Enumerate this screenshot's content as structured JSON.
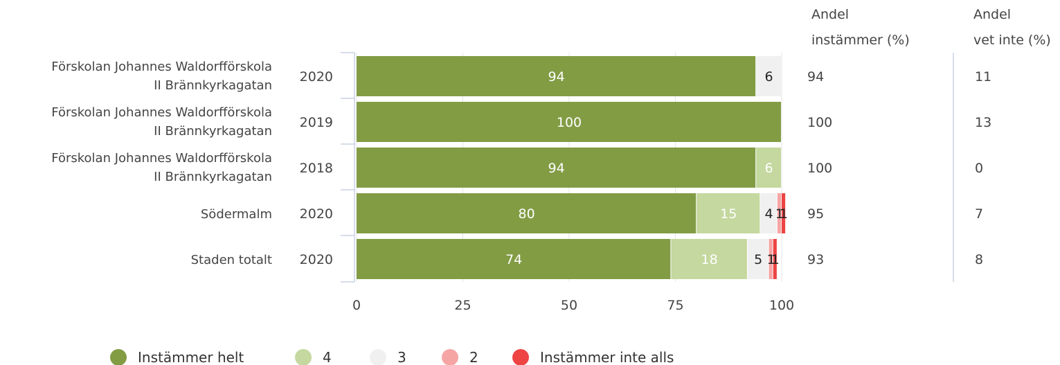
{
  "chart_data": {
    "type": "bar",
    "stacked": true,
    "orientation": "horizontal",
    "rows": [
      {
        "label_line1": "Förskolan Johannes Waldorfförskola",
        "label_line2": "II Brännkyrkagatan",
        "year": "2020",
        "values": [
          94,
          0,
          6,
          0,
          0
        ],
        "andel_instammer": "94",
        "andel_vet_inte": "11"
      },
      {
        "label_line1": "Förskolan Johannes Waldorfförskola",
        "label_line2": "II Brännkyrkagatan",
        "year": "2019",
        "values": [
          100,
          0,
          0,
          0,
          0
        ],
        "andel_instammer": "100",
        "andel_vet_inte": "13"
      },
      {
        "label_line1": "Förskolan Johannes Waldorfförskola",
        "label_line2": "II Brännkyrkagatan",
        "year": "2018",
        "values": [
          94,
          6,
          0,
          0,
          0
        ],
        "andel_instammer": "100",
        "andel_vet_inte": "0"
      },
      {
        "label_line1": "Södermalm",
        "label_line2": "",
        "year": "2020",
        "values": [
          80,
          15,
          4,
          1,
          1
        ],
        "andel_instammer": "95",
        "andel_vet_inte": "7"
      },
      {
        "label_line1": "Staden totalt",
        "label_line2": "",
        "year": "2020",
        "values": [
          74,
          18,
          5,
          1,
          1
        ],
        "andel_instammer": "93",
        "andel_vet_inte": "8"
      }
    ],
    "series": [
      {
        "name": "Instämmer helt",
        "color": "#829c44",
        "label_color": "#ffffff"
      },
      {
        "name": "4",
        "color": "#c4d89f",
        "label_color": "#ffffff"
      },
      {
        "name": "3",
        "color": "#f0f0f0",
        "label_color": "#222222"
      },
      {
        "name": "2",
        "color": "#f6a5a5",
        "label_color": "#222222"
      },
      {
        "name": "Instämmer inte alls",
        "color": "#ee4444",
        "label_color": "#222222"
      }
    ],
    "xlim": [
      0,
      100
    ],
    "ticks": [
      "0",
      "25",
      "50",
      "75",
      "100"
    ],
    "column_headers": {
      "andel_instammer": [
        "Andel",
        "instämmer (%)"
      ],
      "andel_vet_inte": [
        "Andel",
        "vet inte (%)"
      ]
    },
    "grid": true,
    "legend_position": "bottom"
  }
}
